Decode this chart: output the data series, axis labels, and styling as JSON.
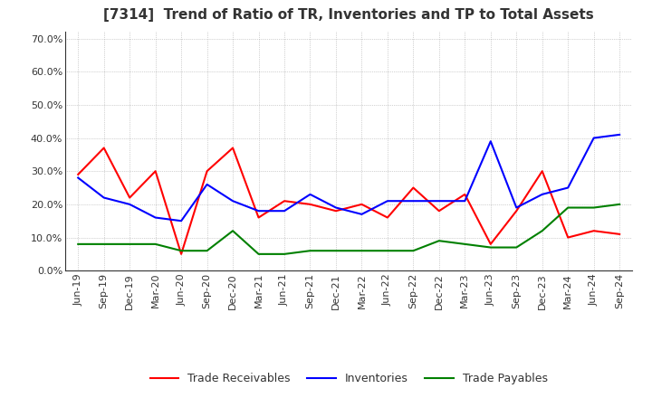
{
  "title": "[7314]  Trend of Ratio of TR, Inventories and TP to Total Assets",
  "x_labels": [
    "Jun-19",
    "Sep-19",
    "Dec-19",
    "Mar-20",
    "Jun-20",
    "Sep-20",
    "Dec-20",
    "Mar-21",
    "Jun-21",
    "Sep-21",
    "Dec-21",
    "Mar-22",
    "Jun-22",
    "Sep-22",
    "Dec-22",
    "Mar-23",
    "Jun-23",
    "Sep-23",
    "Dec-23",
    "Mar-24",
    "Jun-24",
    "Sep-24"
  ],
  "trade_receivables": [
    0.29,
    0.37,
    0.22,
    0.3,
    0.05,
    0.3,
    0.37,
    0.16,
    0.21,
    0.2,
    0.18,
    0.2,
    0.16,
    0.25,
    0.18,
    0.23,
    0.08,
    0.18,
    0.3,
    0.1,
    0.12,
    0.11
  ],
  "inventories": [
    0.28,
    0.22,
    0.2,
    0.16,
    0.15,
    0.26,
    0.21,
    0.18,
    0.18,
    0.23,
    0.19,
    0.17,
    0.21,
    0.21,
    0.21,
    0.21,
    0.39,
    0.19,
    0.23,
    0.25,
    0.4,
    0.41
  ],
  "trade_payables": [
    0.08,
    0.08,
    0.08,
    0.08,
    0.06,
    0.06,
    0.12,
    0.05,
    0.05,
    0.06,
    0.06,
    0.06,
    0.06,
    0.06,
    0.09,
    0.08,
    0.07,
    0.07,
    0.12,
    0.19,
    0.19,
    0.2
  ],
  "tr_color": "#FF0000",
  "inv_color": "#0000FF",
  "tp_color": "#008000",
  "ylim": [
    0.0,
    0.72
  ],
  "yticks": [
    0.0,
    0.1,
    0.2,
    0.3,
    0.4,
    0.5,
    0.6,
    0.7
  ],
  "background_color": "#FFFFFF",
  "grid_color": "#AAAAAA"
}
